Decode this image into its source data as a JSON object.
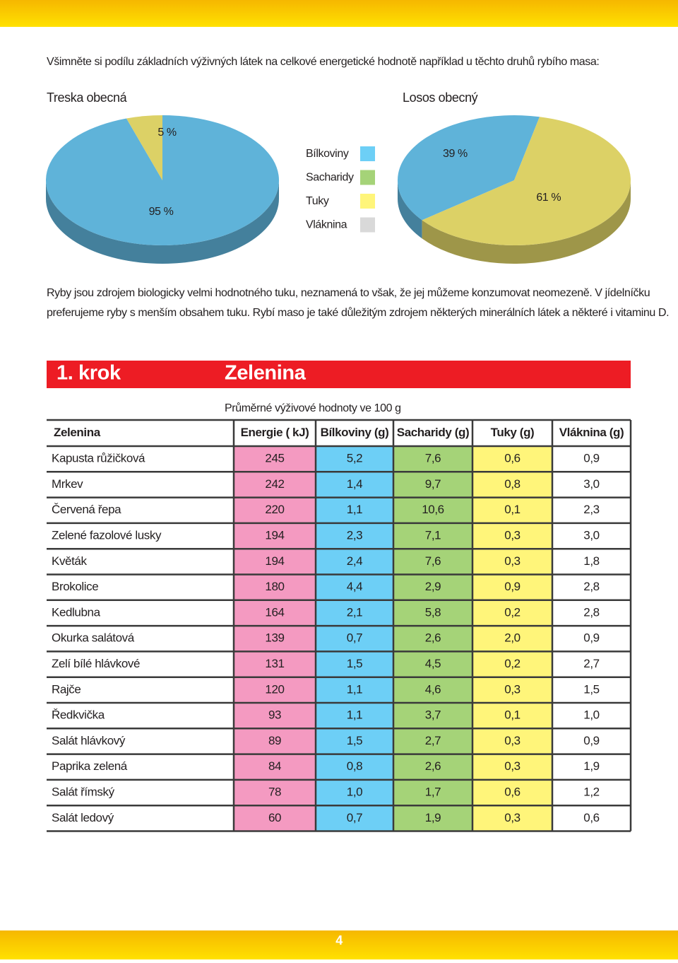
{
  "intro": "Všimněte si podílu základních výživných látek na celkové energetické hodnotě například u těchto druhů rybího masa:",
  "charts": [
    {
      "type": "pie",
      "title": "Treska obecná",
      "values": [
        95,
        5
      ],
      "value_labels": [
        "95 %",
        "5 %"
      ],
      "colors": [
        "#5fb3d9",
        "#dcd166"
      ]
    },
    {
      "type": "pie",
      "title": "Losos obecný",
      "values": [
        39,
        61
      ],
      "value_labels": [
        "39 %",
        "61 %"
      ],
      "colors": [
        "#5fb3d9",
        "#dcd166"
      ]
    }
  ],
  "legend": [
    {
      "name": "Bílkoviny",
      "color": "#6dcff6"
    },
    {
      "name": "Sacharidy",
      "color": "#a5d378"
    },
    {
      "name": "Tuky",
      "color": "#fff57a"
    },
    {
      "name": "Vláknina",
      "color": "#d9d9d9"
    }
  ],
  "paragraph": "Ryby jsou zdrojem biologicky velmi hodnotného tuku, neznamená to však, že jej můžeme konzumovat neomezeně. V jídelníčku preferujeme ryby s menším obsahem tuku. Rybí maso je také důležitým zdrojem některých minerálních látek a některé i vitaminu D.",
  "section": {
    "step": "1. krok",
    "title": "Zelenina"
  },
  "table": {
    "caption": "Průměrné výživové hodnoty ve 100 g",
    "header": [
      "Zelenina",
      "Energie ( kJ)",
      "Bílkoviny (g)",
      "Sacharidy (g)",
      "Tuky (g)",
      "Vláknina (g)"
    ],
    "rows": [
      [
        "Kapusta růžičková",
        "245",
        "5,2",
        "7,6",
        "0,6",
        "0,9"
      ],
      [
        "Mrkev",
        "242",
        "1,4",
        "9,7",
        "0,8",
        "3,0"
      ],
      [
        "Červená řepa",
        "220",
        "1,1",
        "10,6",
        "0,1",
        "2,3"
      ],
      [
        "Zelené fazolové lusky",
        "194",
        "2,3",
        "7,1",
        "0,3",
        "3,0"
      ],
      [
        "Květák",
        "194",
        "2,4",
        "7,6",
        "0,3",
        "1,8"
      ],
      [
        "Brokolice",
        "180",
        "4,4",
        "2,9",
        "0,9",
        "2,8"
      ],
      [
        "Kedlubna",
        "164",
        "2,1",
        "5,8",
        "0,2",
        "2,8"
      ],
      [
        "Okurka salátová",
        "139",
        "0,7",
        "2,6",
        "2,0",
        "0,9"
      ],
      [
        "Zelí bílé hlávkové",
        "131",
        "1,5",
        "4,5",
        "0,2",
        "2,7"
      ],
      [
        "Rajče",
        "120",
        "1,1",
        "4,6",
        "0,3",
        "1,5"
      ],
      [
        "Ředkvička",
        "93",
        "1,1",
        "3,7",
        "0,1",
        "1,0"
      ],
      [
        "Salát hlávkový",
        "89",
        "1,5",
        "2,7",
        "0,3",
        "0,9"
      ],
      [
        "Paprika zelená",
        "84",
        "0,8",
        "2,6",
        "0,3",
        "1,9"
      ],
      [
        "Salát římský",
        "78",
        "1,0",
        "1,7",
        "0,6",
        "1,2"
      ],
      [
        "Salát ledový",
        "60",
        "0,7",
        "1,9",
        "0,3",
        "0,6"
      ]
    ]
  },
  "page_number": "4"
}
